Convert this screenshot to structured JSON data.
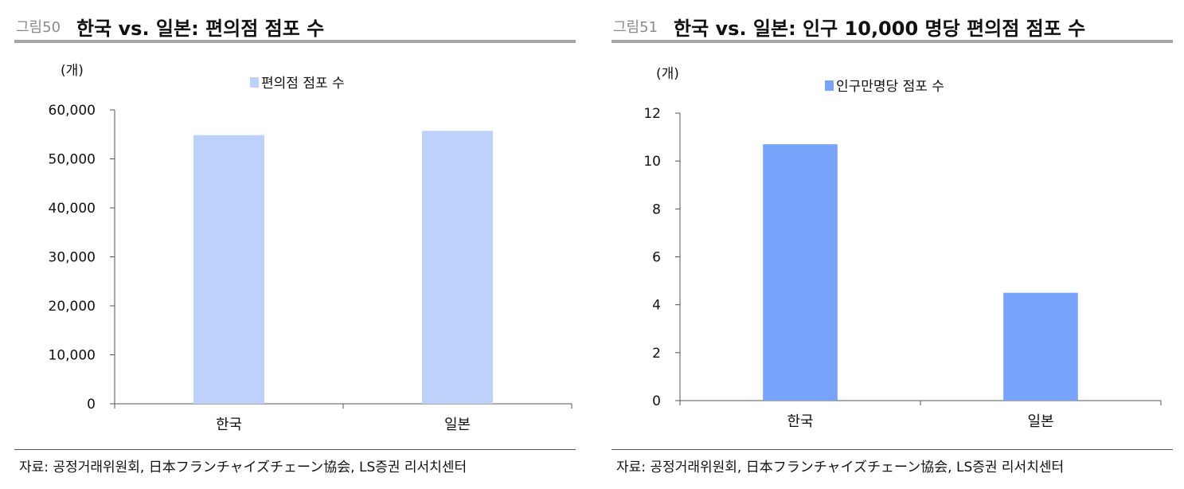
{
  "figures": [
    {
      "fig_no": "그림50",
      "title": "한국 vs. 일본: 편의점 점포 수",
      "source": "자료: 공정거래위원회, 日本フランチャイズチェーン協会, LS증권 리서치센터"
    },
    {
      "fig_no": "그림51",
      "title": "한국 vs. 일본: 인구 10,000 명당 편의점 점포 수",
      "source": "자료: 공정거래위원회, 日本フランチャイズチェーン協会, LS증권 리서치센터"
    }
  ],
  "chart_data": [
    {
      "type": "bar",
      "unit_label": "(개)",
      "categories": [
        "한국",
        "일본"
      ],
      "series": [
        {
          "name": "편의점 점포 수",
          "values": [
            54852,
            55713
          ],
          "color": "#bdd1fb"
        }
      ],
      "ylim": [
        0,
        60000
      ],
      "yticks": [
        0,
        10000,
        20000,
        30000,
        40000,
        50000,
        60000
      ],
      "ytick_labels": [
        "0",
        "10,000",
        "20,000",
        "30,000",
        "40,000",
        "50,000",
        "60,000"
      ],
      "grid": false,
      "legend_position": "top-center"
    },
    {
      "type": "bar",
      "unit_label": "(개)",
      "categories": [
        "한국",
        "일본"
      ],
      "series": [
        {
          "name": "인구만명당 점포 수",
          "values": [
            10.7,
            4.5
          ],
          "color": "#78a3fb"
        }
      ],
      "ylim": [
        0,
        12
      ],
      "yticks": [
        0,
        2,
        4,
        6,
        8,
        10,
        12
      ],
      "ytick_labels": [
        "0",
        "2",
        "4",
        "6",
        "8",
        "10",
        "12"
      ],
      "grid": false,
      "legend_position": "top-center"
    }
  ]
}
